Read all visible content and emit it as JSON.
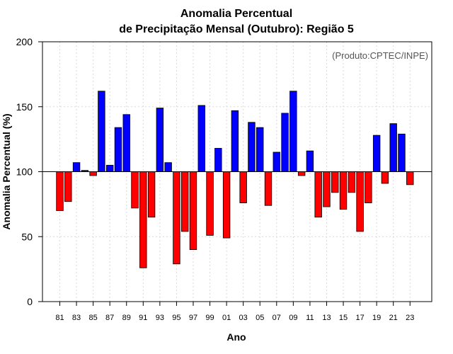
{
  "chart_data": {
    "type": "bar",
    "title": "Anomalia Percentual",
    "subtitle": "de Precipitação Mensal (Outubro): Região 5",
    "annotation": "(Produto:CPTEC/INPE)",
    "xlabel": "Ano",
    "ylabel": "Anomalia Percentual (%)",
    "ylim": [
      0,
      200
    ],
    "yticks": [
      0,
      50,
      100,
      150,
      200
    ],
    "baseline": 100,
    "grid": true,
    "colors": {
      "above": "#0000ff",
      "below": "#ff0000",
      "grid": "#d9d9d9"
    },
    "categories": [
      "81",
      "82",
      "83",
      "84",
      "85",
      "86",
      "87",
      "88",
      "89",
      "90",
      "91",
      "92",
      "93",
      "94",
      "95",
      "96",
      "97",
      "98",
      "99",
      "00",
      "01",
      "02",
      "03",
      "04",
      "05",
      "06",
      "07",
      "08",
      "09",
      "10",
      "11",
      "12",
      "13",
      "14",
      "15",
      "16",
      "17",
      "18",
      "19",
      "20",
      "21",
      "22",
      "23"
    ],
    "xtick_labels": [
      "81",
      "83",
      "85",
      "87",
      "89",
      "91",
      "93",
      "95",
      "97",
      "99",
      "01",
      "03",
      "05",
      "07",
      "09",
      "11",
      "13",
      "15",
      "17",
      "19",
      "21",
      "23"
    ],
    "values": [
      70,
      77,
      107,
      101,
      97,
      162,
      105,
      134,
      144,
      72,
      26,
      65,
      149,
      107,
      29,
      54,
      40,
      151,
      51,
      118,
      49,
      147,
      76,
      138,
      134,
      74,
      115,
      145,
      162,
      97,
      116,
      65,
      73,
      84,
      71,
      84,
      54,
      76,
      128,
      91,
      137,
      129,
      90
    ]
  }
}
